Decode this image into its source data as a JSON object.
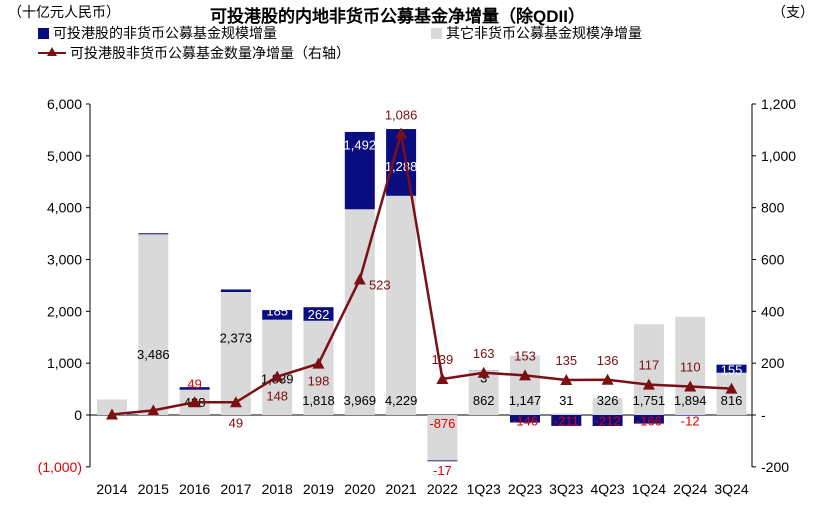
{
  "title": "可投港股的内地非货币公募基金净增量（除QDII）",
  "unit_left": "（十亿元人民币）",
  "unit_right": "（支）",
  "legend": {
    "hk_size": "可投港股的非货币公募基金规模增量",
    "other_size": "其它非货币公募基金规模净增量",
    "hk_count": "可投港股非货币公募基金数量净增量（右轴）"
  },
  "colors": {
    "hk_size": "#0a0d80",
    "other_size": "#d9d9d9",
    "hk_count": "#7b0f14",
    "negative_label": "#e00000"
  },
  "chart_data": {
    "type": "bar",
    "stacked": true,
    "categories": [
      "2014",
      "2015",
      "2016",
      "2017",
      "2018",
      "2019",
      "2020",
      "2021",
      "2022",
      "1Q23",
      "2Q23",
      "3Q23",
      "4Q23",
      "1Q24",
      "2Q24",
      "3Q24"
    ],
    "series": [
      {
        "name": "其它非货币公募基金规模净增量",
        "axis": "left",
        "values": [
          300,
          3486,
          488,
          2373,
          1839,
          1818,
          3969,
          4229,
          -876,
          862,
          1147,
          31,
          326,
          1751,
          1894,
          816
        ],
        "labels": [
          "",
          "3,486",
          "488",
          "2,373",
          "1,839",
          "1,818",
          "3,969",
          "4,229",
          "",
          "862",
          "1,147",
          "31",
          "326",
          "1,751",
          "1,894",
          "816"
        ]
      },
      {
        "name": "可投港股的非货币公募基金规模增量",
        "axis": "left",
        "values": [
          0,
          20,
          49,
          49,
          185,
          262,
          1492,
          1288,
          -17,
          3,
          -146,
          -211,
          -212,
          -166,
          -12,
          155
        ],
        "labels": [
          "",
          "",
          "49",
          "",
          "185",
          "262",
          "1,492",
          "1,288",
          "-17",
          "3",
          "-146",
          "-211",
          "-212",
          "-166",
          "-12",
          "155"
        ]
      },
      {
        "name": "可投港股非货币公募基金数量净增量（右轴）",
        "axis": "right",
        "type": "line",
        "values": [
          2,
          18,
          49,
          49,
          148,
          198,
          523,
          1086,
          139,
          163,
          153,
          135,
          136,
          117,
          110,
          102
        ],
        "labels": [
          "",
          "",
          "",
          "49",
          "148",
          "198",
          "523",
          "1,086",
          "139",
          "163",
          "153",
          "135",
          "136",
          "117",
          "110",
          ""
        ]
      }
    ],
    "ylim_left": [
      -1000,
      6000
    ],
    "yticks_left": [
      "(1,000)",
      "0",
      "1,000",
      "2,000",
      "3,000",
      "4,000",
      "5,000",
      "6,000"
    ],
    "ylim_right": [
      -200,
      1200
    ],
    "yticks_right": [
      "-200",
      "-",
      "200",
      "400",
      "600",
      "800",
      "1,000",
      "1,200"
    ],
    "ylabel_left": "（十亿元人民币）",
    "ylabel_right": "（支）",
    "legend_position": "top-left",
    "grid": false
  }
}
